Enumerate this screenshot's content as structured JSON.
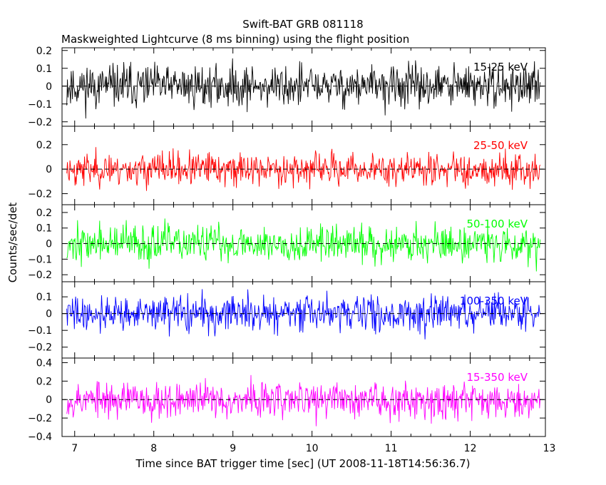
{
  "title": "Swift-BAT GRB 081118",
  "subtitle": "Maskweighted Lightcurve (8 ms binning) using the flight position",
  "xlabel": "Time since BAT trigger time [sec] (UT 2008-11-18T14:56:36.7)",
  "ylabel": "Counts/sec/det",
  "colors": {
    "frame": "#000000",
    "background": "#ffffff"
  },
  "chart_data": {
    "type": "line",
    "x_range": [
      6.84,
      12.95
    ],
    "x_ticks": [
      7,
      8,
      9,
      10,
      11,
      12,
      13
    ],
    "x_start": 6.9,
    "x_end": 12.88,
    "bin_width_sec": 0.008,
    "panels": [
      {
        "name": "15-25 keV",
        "label": "15-25 keV",
        "color": "#000000",
        "ylim": [
          -0.225,
          0.215
        ],
        "yticks": [
          -0.2,
          -0.1,
          0,
          0.1,
          0.2
        ],
        "ytick_labels": [
          "−0.2",
          "−0.1",
          "0",
          "0.1",
          "0.2"
        ],
        "noise_amplitude": 0.085,
        "seed": 11
      },
      {
        "name": "25-50 keV",
        "label": "25-50 keV",
        "color": "#ff0000",
        "ylim": [
          -0.29,
          0.35
        ],
        "yticks": [
          -0.2,
          0,
          0.2
        ],
        "ytick_labels": [
          "−0.2",
          "0",
          "0.2"
        ],
        "noise_amplitude": 0.095,
        "seed": 23
      },
      {
        "name": "50-100 keV",
        "label": "50-100 keV",
        "color": "#00ff00",
        "ylim": [
          -0.245,
          0.25
        ],
        "yticks": [
          -0.2,
          -0.1,
          0,
          0.1,
          0.2
        ],
        "ytick_labels": [
          "−0.2",
          "−0.1",
          "0",
          "0.1",
          "0.2"
        ],
        "noise_amplitude": 0.085,
        "seed": 37
      },
      {
        "name": "100-350 keV",
        "label": "100-350 keV",
        "color": "#0000ff",
        "ylim": [
          -0.265,
          0.19
        ],
        "yticks": [
          -0.2,
          -0.1,
          0,
          0.1
        ],
        "ytick_labels": [
          "−0.2",
          "−0.1",
          "0",
          "0.1"
        ],
        "noise_amplitude": 0.075,
        "seed": 41
      },
      {
        "name": "15-350 keV",
        "label": "15-350 keV",
        "color": "#ff00ff",
        "ylim": [
          -0.4,
          0.45
        ],
        "yticks": [
          -0.4,
          -0.2,
          0,
          0.2,
          0.4
        ],
        "ytick_labels": [
          "−0.4",
          "−0.2",
          "0",
          "0.2",
          "0.4"
        ],
        "noise_amplitude": 0.14,
        "seed": 53
      }
    ]
  }
}
